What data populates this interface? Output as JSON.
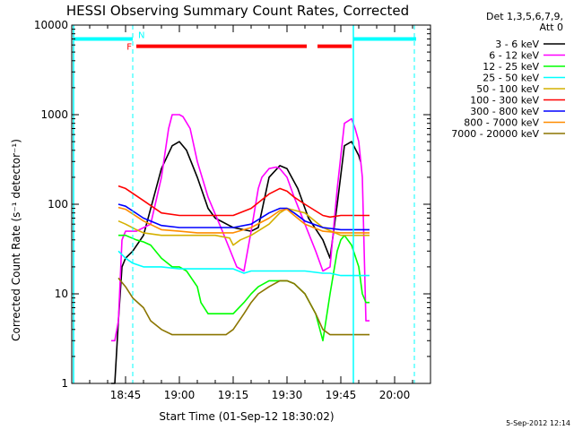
{
  "chart_data": {
    "type": "line",
    "title": "HESSI Observing Summary Count Rates, Corrected",
    "xlabel": "Start Time (01-Sep-12 18:30:02)",
    "ylabel": "Corrected Count Rate (s⁻¹ detector⁻¹)",
    "yscale": "log",
    "ylim": [
      1,
      10000
    ],
    "xlim_minutes_after_18_30": [
      0,
      100
    ],
    "x_ticks": [
      {
        "label": "18:45",
        "min": 15
      },
      {
        "label": "19:00",
        "min": 30
      },
      {
        "label": "19:15",
        "min": 45
      },
      {
        "label": "19:30",
        "min": 60
      },
      {
        "label": "19:45",
        "min": 75
      },
      {
        "label": "20:00",
        "min": 90
      }
    ],
    "y_ticks": [
      {
        "label": "1",
        "value": 1
      },
      {
        "label": "10",
        "value": 10
      },
      {
        "label": "100",
        "value": 100
      },
      {
        "label": "1000",
        "value": 1000
      },
      {
        "label": "10000",
        "value": 10000
      }
    ],
    "legend_title": [
      "Det 1,3,5,6,7,9,",
      "Att 0"
    ],
    "legend_position": "right",
    "flags": [
      {
        "label": "N",
        "color": "#00ffff"
      },
      {
        "label": "F",
        "color": "#ff0000"
      }
    ],
    "series": [
      {
        "name": "3 - 6 keV",
        "color": "#000000",
        "x": [
          11,
          12,
          13,
          14,
          15,
          17,
          20,
          25,
          28,
          30,
          32,
          35,
          38,
          40,
          45,
          50,
          52,
          55,
          58,
          60,
          63,
          66,
          70,
          72,
          74,
          76,
          78,
          80,
          80.5
        ],
        "y": [
          1,
          1,
          5,
          20,
          25,
          30,
          45,
          250,
          450,
          500,
          400,
          200,
          90,
          70,
          55,
          50,
          55,
          200,
          270,
          250,
          150,
          70,
          40,
          25,
          100,
          450,
          500,
          350,
          300
        ]
      },
      {
        "name": "6 - 12 keV",
        "color": "#ff00ff",
        "x": [
          11,
          12,
          13,
          14,
          15,
          18,
          22,
          25,
          27,
          28,
          30,
          31,
          33,
          35,
          38,
          42,
          46,
          48,
          50,
          52,
          53,
          55,
          57,
          58,
          60,
          62,
          65,
          68,
          70,
          72,
          74,
          76,
          78,
          79,
          80,
          81,
          82,
          83
        ],
        "y": [
          3,
          3,
          5,
          40,
          50,
          50,
          60,
          200,
          700,
          1000,
          1000,
          950,
          700,
          300,
          120,
          50,
          20,
          18,
          50,
          150,
          200,
          250,
          260,
          250,
          200,
          120,
          60,
          30,
          18,
          20,
          150,
          800,
          900,
          700,
          500,
          200,
          5,
          5
        ]
      },
      {
        "name": "12 - 25 keV",
        "color": "#00ff00",
        "x": [
          13,
          15,
          18,
          20,
          22,
          25,
          28,
          30,
          32,
          35,
          36,
          38,
          40,
          42,
          45,
          48,
          50,
          52,
          55,
          58,
          60,
          62,
          65,
          68,
          70,
          72,
          74,
          75,
          76,
          78,
          80,
          81,
          82,
          83
        ],
        "y": [
          45,
          45,
          40,
          38,
          35,
          25,
          20,
          20,
          18,
          12,
          8,
          6,
          6,
          6,
          6,
          8,
          10,
          12,
          14,
          14,
          14,
          13,
          10,
          6,
          3,
          10,
          30,
          40,
          45,
          35,
          20,
          10,
          8,
          8
        ]
      },
      {
        "name": "25 - 50 keV",
        "color": "#00ffff",
        "x": [
          13,
          15,
          17,
          20,
          25,
          30,
          35,
          40,
          45,
          48,
          50,
          55,
          60,
          65,
          70,
          72,
          75,
          80,
          83
        ],
        "y": [
          30,
          25,
          22,
          20,
          20,
          19,
          19,
          19,
          19,
          17,
          18,
          18,
          18,
          18,
          17,
          17,
          16,
          16,
          16
        ]
      },
      {
        "name": "50 - 100 keV",
        "color": "#d4b000",
        "x": [
          13,
          15,
          18,
          20,
          25,
          30,
          35,
          40,
          44,
          45,
          47,
          50,
          55,
          58,
          60,
          65,
          70,
          75,
          80,
          83
        ],
        "y": [
          65,
          60,
          52,
          48,
          45,
          45,
          45,
          45,
          42,
          35,
          40,
          45,
          60,
          80,
          90,
          80,
          55,
          45,
          45,
          45
        ]
      },
      {
        "name": "100 - 300 keV",
        "color": "#ff0000",
        "x": [
          13,
          15,
          20,
          25,
          30,
          35,
          40,
          45,
          50,
          55,
          58,
          60,
          62,
          65,
          70,
          72,
          75,
          78,
          80,
          83
        ],
        "y": [
          160,
          150,
          110,
          80,
          75,
          75,
          75,
          75,
          90,
          130,
          150,
          140,
          120,
          100,
          75,
          72,
          75,
          75,
          75,
          75
        ]
      },
      {
        "name": "300 - 800 keV",
        "color": "#0000ff",
        "x": [
          13,
          15,
          20,
          25,
          30,
          35,
          40,
          45,
          50,
          55,
          58,
          60,
          62,
          65,
          70,
          75,
          80,
          83
        ],
        "y": [
          100,
          95,
          70,
          58,
          55,
          55,
          55,
          55,
          60,
          80,
          90,
          90,
          80,
          65,
          55,
          52,
          52,
          52
        ]
      },
      {
        "name": "800 - 7000 keV",
        "color": "#ff8c00",
        "x": [
          13,
          15,
          20,
          25,
          30,
          35,
          40,
          45,
          50,
          55,
          58,
          60,
          62,
          65,
          70,
          75,
          80,
          83
        ],
        "y": [
          92,
          88,
          65,
          52,
          50,
          48,
          48,
          48,
          55,
          70,
          85,
          88,
          75,
          60,
          50,
          48,
          48,
          48
        ]
      },
      {
        "name": "7000 - 20000 keV",
        "color": "#8b7500",
        "x": [
          13,
          15,
          17,
          20,
          22,
          25,
          28,
          30,
          32,
          35,
          40,
          43,
          45,
          48,
          50,
          52,
          55,
          58,
          60,
          62,
          65,
          68,
          70,
          72,
          74,
          75,
          78,
          80,
          83
        ],
        "y": [
          15,
          12,
          9,
          7,
          5,
          4,
          3.5,
          3.5,
          3.5,
          3.5,
          3.5,
          3.5,
          4,
          6,
          8,
          10,
          12,
          14,
          14,
          13,
          10,
          6,
          4,
          3.5,
          3.5,
          3.5,
          3.5,
          3.5,
          3.5
        ]
      }
    ],
    "footer": "5-Sep-2012 12:14"
  }
}
